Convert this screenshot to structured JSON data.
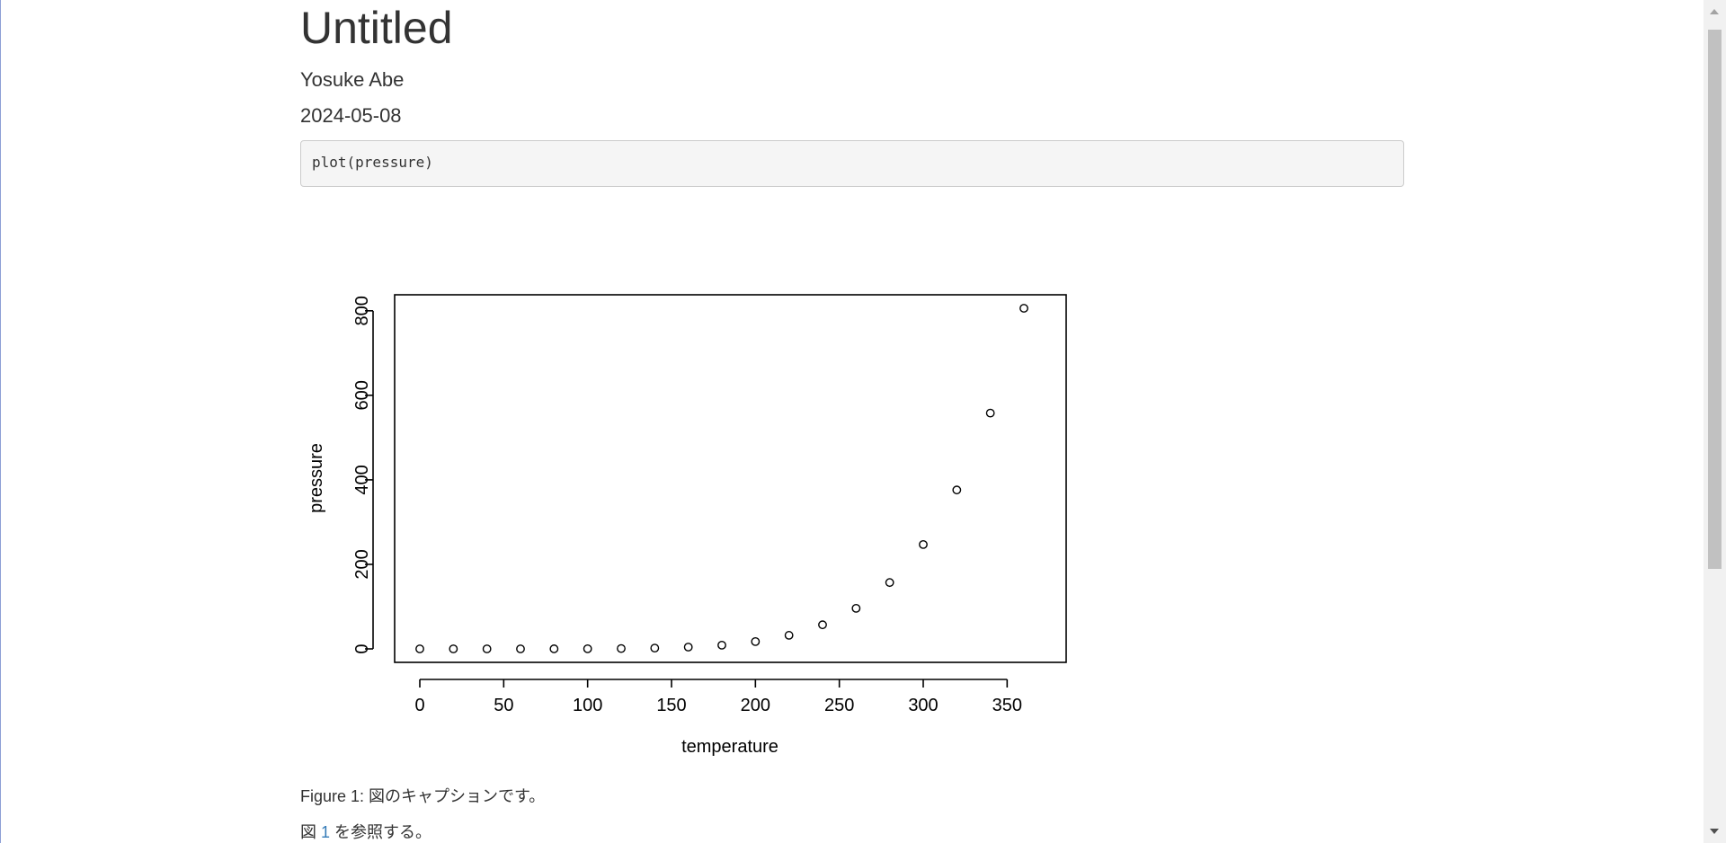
{
  "document": {
    "title": "Untitled",
    "author": "Yosuke Abe",
    "date": "2024-05-08",
    "code": "plot(pressure)",
    "caption": "Figure 1: 図のキャプションです。",
    "reference": {
      "prefix": "図 ",
      "link_text": "1",
      "suffix": " を参照する。"
    }
  },
  "chart_data": {
    "type": "scatter",
    "title": "",
    "xlabel": "temperature",
    "ylabel": "pressure",
    "xlim": [
      0,
      360
    ],
    "ylim": [
      0,
      806
    ],
    "x_ticks": [
      0,
      50,
      100,
      150,
      200,
      250,
      300,
      350
    ],
    "y_ticks": [
      0,
      200,
      400,
      600,
      800
    ],
    "x_tick_labels": [
      "0",
      "50",
      "100",
      "150",
      "200",
      "250",
      "300",
      "350"
    ],
    "y_tick_labels": [
      "0",
      "200",
      "400",
      "600",
      "800"
    ],
    "x": [
      0,
      20,
      40,
      60,
      80,
      100,
      120,
      140,
      160,
      180,
      200,
      220,
      240,
      260,
      280,
      300,
      320,
      340,
      360
    ],
    "y": [
      0.0002,
      0.0012,
      0.006,
      0.03,
      0.09,
      0.27,
      0.75,
      1.85,
      4.2,
      8.8,
      17.3,
      32.1,
      57,
      96,
      157,
      247,
      376,
      558,
      806
    ],
    "point_color": "#000000",
    "grid": false
  },
  "scrollbar": {
    "up_icon": "chevron-up-icon",
    "down_icon": "chevron-down-icon"
  }
}
